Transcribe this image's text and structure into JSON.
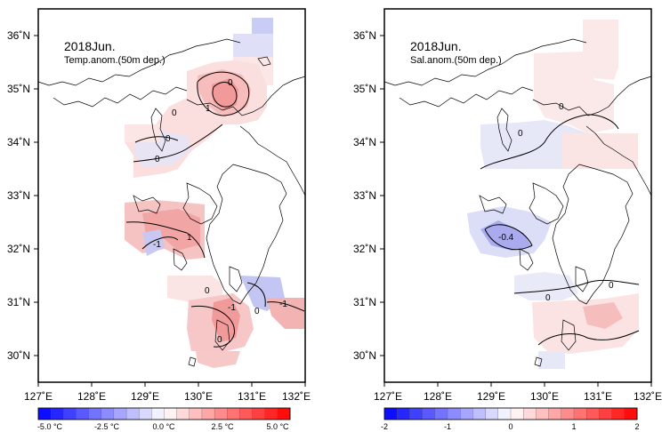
{
  "panels": [
    {
      "title": "2018Jun.",
      "subtitle": "Temp.anom.(50m dep.)",
      "contour_labels": [
        "1",
        "0",
        "0",
        "0",
        "-1",
        "1",
        "0",
        "-1",
        "0",
        "0",
        "-1",
        "0"
      ],
      "colorbar": {
        "labels": [
          "-5.0 °C",
          "-2.5 °C",
          "0.0 °C",
          "2.5 °C",
          "5.0 °C"
        ],
        "min": -5.0,
        "max": 5.0
      }
    },
    {
      "title": "2018Jun.",
      "subtitle": "Sal.anom.(50m dep.)",
      "contour_labels": [
        "0",
        "0",
        "-0.4",
        "0",
        "0"
      ],
      "colorbar": {
        "labels": [
          "-2",
          "-1",
          "0",
          "1",
          "2"
        ],
        "min": -2,
        "max": 2
      }
    }
  ],
  "lon_labels": [
    "127˚E",
    "128˚E",
    "129˚E",
    "130˚E",
    "131˚E",
    "132˚E"
  ],
  "lat_labels": [
    "36˚N",
    "35˚N",
    "34˚N",
    "33˚N",
    "32˚N",
    "31˚N",
    "30˚N"
  ],
  "colors": {
    "neg": "#0000ff",
    "pos": "#ff0000",
    "land_line": "#000000"
  }
}
